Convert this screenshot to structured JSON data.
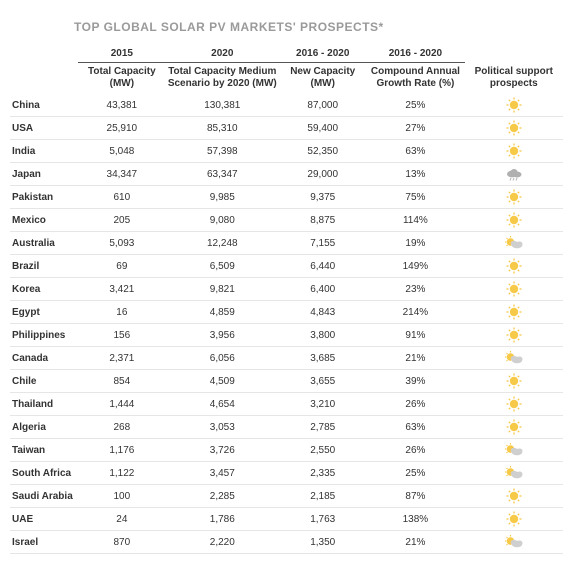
{
  "title": "TOP GLOBAL SOLAR PV MARKETS' PROSPECTS*",
  "columns": {
    "group1": "2015",
    "group2": "2020",
    "group3": "2016 - 2020",
    "group4": "2016 - 2020",
    "cap15": "Total Capacity (MW)",
    "cap20": "Total Capacity Medium Scenario by 2020 (MW)",
    "newcap": "New Capacity (MW)",
    "cagr": "Compound Annual Growth Rate (%)",
    "pol": "Political support prospects"
  },
  "icons": {
    "sun": {
      "sun_color": "#f7c948",
      "cloud_color": "#d9d9d9",
      "type": "sun"
    },
    "cloud": {
      "sun_color": "#f7c948",
      "cloud_color": "#b0b0b0",
      "type": "cloud"
    },
    "partly": {
      "sun_color": "#f7c948",
      "cloud_color": "#cfcfcf",
      "type": "partly"
    }
  },
  "rows": [
    {
      "country": "China",
      "cap15": "43,381",
      "cap20": "130,381",
      "newcap": "87,000",
      "cagr": "25%",
      "pol": "sun"
    },
    {
      "country": "USA",
      "cap15": "25,910",
      "cap20": "85,310",
      "newcap": "59,400",
      "cagr": "27%",
      "pol": "sun"
    },
    {
      "country": "India",
      "cap15": "5,048",
      "cap20": "57,398",
      "newcap": "52,350",
      "cagr": "63%",
      "pol": "sun"
    },
    {
      "country": "Japan",
      "cap15": "34,347",
      "cap20": "63,347",
      "newcap": "29,000",
      "cagr": "13%",
      "pol": "cloud"
    },
    {
      "country": "Pakistan",
      "cap15": "610",
      "cap20": "9,985",
      "newcap": "9,375",
      "cagr": "75%",
      "pol": "sun"
    },
    {
      "country": "Mexico",
      "cap15": "205",
      "cap20": "9,080",
      "newcap": "8,875",
      "cagr": "114%",
      "pol": "sun"
    },
    {
      "country": "Australia",
      "cap15": "5,093",
      "cap20": "12,248",
      "newcap": "7,155",
      "cagr": "19%",
      "pol": "partly"
    },
    {
      "country": "Brazil",
      "cap15": "69",
      "cap20": "6,509",
      "newcap": "6,440",
      "cagr": "149%",
      "pol": "sun"
    },
    {
      "country": "Korea",
      "cap15": "3,421",
      "cap20": "9,821",
      "newcap": "6,400",
      "cagr": "23%",
      "pol": "sun"
    },
    {
      "country": "Egypt",
      "cap15": "16",
      "cap20": "4,859",
      "newcap": "4,843",
      "cagr": "214%",
      "pol": "sun"
    },
    {
      "country": "Philippines",
      "cap15": "156",
      "cap20": "3,956",
      "newcap": "3,800",
      "cagr": "91%",
      "pol": "sun"
    },
    {
      "country": "Canada",
      "cap15": "2,371",
      "cap20": "6,056",
      "newcap": "3,685",
      "cagr": "21%",
      "pol": "partly"
    },
    {
      "country": "Chile",
      "cap15": "854",
      "cap20": "4,509",
      "newcap": "3,655",
      "cagr": "39%",
      "pol": "sun"
    },
    {
      "country": "Thailand",
      "cap15": "1,444",
      "cap20": "4,654",
      "newcap": "3,210",
      "cagr": "26%",
      "pol": "sun"
    },
    {
      "country": "Algeria",
      "cap15": "268",
      "cap20": "3,053",
      "newcap": "2,785",
      "cagr": "63%",
      "pol": "sun"
    },
    {
      "country": "Taiwan",
      "cap15": "1,176",
      "cap20": "3,726",
      "newcap": "2,550",
      "cagr": "26%",
      "pol": "partly"
    },
    {
      "country": "South Africa",
      "cap15": "1,122",
      "cap20": "3,457",
      "newcap": "2,335",
      "cagr": "25%",
      "pol": "partly"
    },
    {
      "country": "Saudi Arabia",
      "cap15": "100",
      "cap20": "2,285",
      "newcap": "2,185",
      "cagr": "87%",
      "pol": "sun"
    },
    {
      "country": "UAE",
      "cap15": "24",
      "cap20": "1,786",
      "newcap": "1,763",
      "cagr": "138%",
      "pol": "sun"
    },
    {
      "country": "Israel",
      "cap15": "870",
      "cap20": "2,220",
      "newcap": "1,350",
      "cagr": "21%",
      "pol": "partly"
    }
  ]
}
